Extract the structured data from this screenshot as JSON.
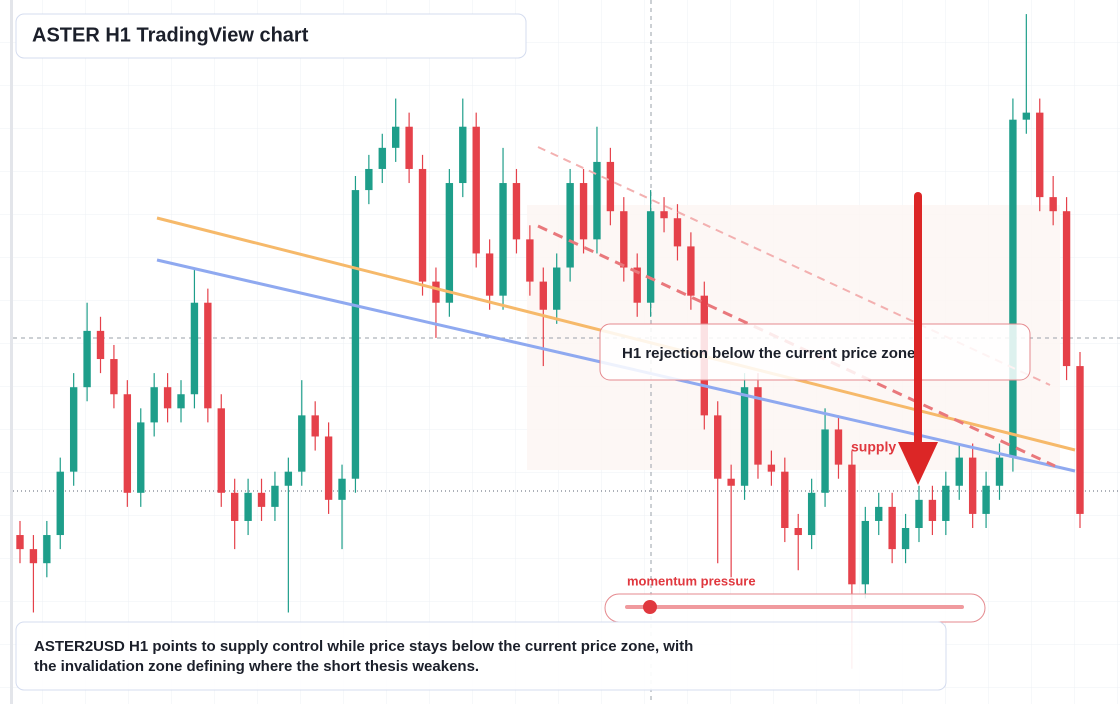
{
  "chart_data": {
    "type": "candlestick",
    "title": "ASTER H1 TradingView chart",
    "annotation": "H1 rejection below the current price zone",
    "supply_label": "supply",
    "momentum_label": "momentum pressure",
    "caption": [
      "ASTER2USD H1 points to supply control while price stays below the current price zone, with",
      "the invalidation zone defining where the short thesis weakens."
    ],
    "up_color": "#1e9e8a",
    "down_color": "#e5414a",
    "ylim": [
      0,
      100
    ],
    "open": [
      24,
      22,
      20,
      24,
      33,
      45,
      53,
      49,
      44,
      30,
      40,
      45,
      42,
      44,
      57,
      42,
      30,
      26,
      30,
      28,
      31,
      33,
      41,
      38,
      29,
      32,
      73,
      76,
      79,
      82,
      76,
      60,
      57,
      74,
      82,
      64,
      58,
      74,
      66,
      60,
      56,
      62,
      74,
      66,
      77,
      70,
      62,
      57,
      70,
      69,
      65,
      58,
      41,
      32,
      31,
      45,
      34,
      33,
      25,
      24,
      30,
      39,
      34,
      17,
      26,
      28,
      22,
      25,
      29,
      26,
      31,
      35,
      27,
      31,
      35,
      83,
      84,
      72,
      70,
      48
    ],
    "high": [
      26,
      24,
      26,
      35,
      47,
      57,
      55,
      51,
      46,
      42,
      47,
      47,
      46,
      62,
      59,
      44,
      32,
      32,
      32,
      33,
      35,
      46,
      43,
      40,
      34,
      75,
      78,
      81,
      86,
      84,
      78,
      62,
      76,
      86,
      84,
      66,
      79,
      76,
      68,
      62,
      64,
      76,
      76,
      82,
      79,
      72,
      64,
      73,
      72,
      71,
      67,
      60,
      43,
      34,
      47,
      47,
      36,
      35,
      27,
      32,
      42,
      41,
      36,
      28,
      30,
      30,
      27,
      31,
      31,
      33,
      37,
      37,
      33,
      37,
      86,
      98,
      86,
      75,
      72,
      50
    ],
    "low": [
      20,
      13,
      18,
      22,
      31,
      43,
      47,
      42,
      28,
      28,
      38,
      40,
      40,
      42,
      40,
      28,
      22,
      24,
      26,
      26,
      13,
      31,
      36,
      27,
      22,
      30,
      71,
      74,
      77,
      74,
      58,
      52,
      55,
      72,
      62,
      56,
      56,
      64,
      58,
      48,
      54,
      60,
      64,
      64,
      68,
      60,
      55,
      55,
      67,
      63,
      56,
      39,
      20,
      18,
      29,
      32,
      31,
      23,
      19,
      22,
      28,
      32,
      5,
      15,
      24,
      20,
      20,
      23,
      24,
      24,
      29,
      25,
      25,
      29,
      33,
      81,
      70,
      68,
      46,
      25
    ],
    "close": [
      22,
      20,
      24,
      33,
      45,
      53,
      49,
      44,
      30,
      40,
      45,
      42,
      44,
      57,
      42,
      30,
      26,
      30,
      28,
      31,
      33,
      41,
      38,
      29,
      32,
      73,
      76,
      79,
      82,
      76,
      60,
      57,
      74,
      82,
      64,
      58,
      74,
      66,
      60,
      56,
      62,
      74,
      66,
      77,
      70,
      62,
      57,
      70,
      69,
      65,
      58,
      41,
      32,
      31,
      45,
      34,
      33,
      25,
      24,
      30,
      39,
      34,
      17,
      26,
      28,
      22,
      25,
      29,
      26,
      31,
      35,
      27,
      31,
      35,
      83,
      84,
      72,
      70,
      48,
      27
    ]
  }
}
